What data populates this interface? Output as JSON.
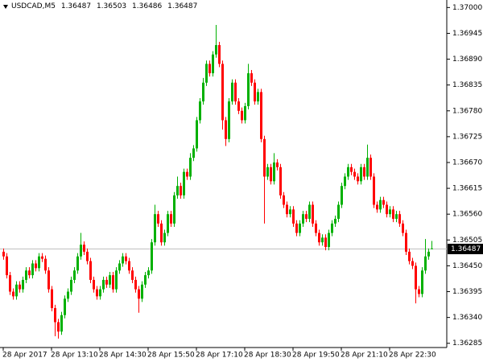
{
  "chart_data": {
    "type": "candlestick",
    "title": "USDCAD,M5",
    "categories": [
      "28 Apr 2017",
      null,
      null,
      null,
      null,
      null,
      null,
      null,
      null,
      null,
      null,
      null,
      null,
      null,
      null,
      "28 Apr 13:10",
      null,
      null,
      null,
      null,
      null,
      null,
      null,
      null,
      null,
      null,
      null,
      null,
      null,
      null,
      "28 Apr 14:30",
      null,
      null,
      null,
      null,
      null,
      null,
      null,
      null,
      null,
      null,
      null,
      null,
      null,
      null,
      "28 Apr 15:50",
      null,
      null,
      null,
      null,
      null,
      null,
      null,
      null,
      null,
      null,
      null,
      null,
      null,
      null,
      "28 Apr 17:10",
      null,
      null,
      null,
      null,
      null,
      null,
      null,
      null,
      null,
      null,
      null,
      null,
      null,
      null,
      "28 Apr 18:30",
      null,
      null,
      null,
      null,
      null,
      null,
      null,
      null,
      null,
      null,
      null,
      null,
      null,
      null,
      "28 Apr 19:50",
      null,
      null,
      null,
      null,
      null,
      null,
      null,
      null,
      null,
      null,
      null,
      null,
      null,
      null,
      "28 Apr 21:10",
      null,
      null,
      null,
      null,
      null,
      null,
      null,
      null,
      null,
      null,
      null,
      null,
      null,
      null,
      "28 Apr 22:30",
      null,
      null,
      null,
      null,
      null,
      null,
      null,
      null,
      null,
      null,
      null,
      null,
      null
    ],
    "open": [
      1.3648,
      1.3647,
      1.3643,
      1.36395,
      1.36385,
      1.3641,
      1.364,
      1.3642,
      1.3644,
      1.3643,
      1.36455,
      1.36445,
      1.3647,
      1.36465,
      1.3644,
      1.364,
      1.3636,
      1.3633,
      1.3631,
      1.36345,
      1.3638,
      1.36395,
      1.3642,
      1.3644,
      1.3647,
      1.36495,
      1.3648,
      1.3646,
      1.3642,
      1.364,
      1.36385,
      1.364,
      1.3642,
      1.3641,
      1.3643,
      1.364,
      1.3644,
      1.36455,
      1.3647,
      1.3646,
      1.3644,
      1.3642,
      1.364,
      1.3638,
      1.3641,
      1.3643,
      1.3644,
      1.365,
      1.3656,
      1.3654,
      1.365,
      1.3652,
      1.3656,
      1.3654,
      1.366,
      1.3662,
      1.366,
      1.3665,
      1.3664,
      1.3668,
      1.367,
      1.3676,
      1.368,
      1.3684,
      1.3688,
      1.3686,
      1.369,
      1.3692,
      1.3688,
      1.3676,
      1.3672,
      1.368,
      1.3684,
      1.368,
      1.3678,
      1.3676,
      1.3679,
      1.3686,
      1.3684,
      1.368,
      1.3682,
      1.3672,
      1.3664,
      1.3666,
      1.3663,
      1.3667,
      1.3666,
      1.366,
      1.3658,
      1.3656,
      1.3657,
      1.3654,
      1.3652,
      1.3654,
      1.3656,
      1.3655,
      1.3658,
      1.3654,
      1.3652,
      1.365,
      1.3651,
      1.3649,
      1.3652,
      1.3654,
      1.3655,
      1.3658,
      1.3662,
      1.3664,
      1.3666,
      1.3665,
      1.3664,
      1.3663,
      1.3666,
      1.3664,
      1.3668,
      1.3664,
      1.3658,
      1.3657,
      1.3659,
      1.3658,
      1.3656,
      1.3657,
      1.3655,
      1.3656,
      1.3654,
      1.3652,
      1.3648,
      1.3646,
      1.3645,
      1.364,
      1.3639,
      1.3644,
      1.3647,
      1.36487
    ],
    "high": [
      1.36487,
      1.36477,
      1.36437,
      1.36402,
      1.36417,
      1.36417,
      1.36427,
      1.36447,
      1.36447,
      1.36462,
      1.36462,
      1.36477,
      1.36477,
      1.36472,
      1.36447,
      1.36407,
      1.36367,
      1.36337,
      1.36352,
      1.36387,
      1.36402,
      1.36427,
      1.36447,
      1.36477,
      1.3652,
      1.36502,
      1.36487,
      1.36467,
      1.36427,
      1.36407,
      1.36407,
      1.36427,
      1.36427,
      1.36437,
      1.36437,
      1.36447,
      1.36462,
      1.36477,
      1.36477,
      1.36467,
      1.36447,
      1.36427,
      1.36407,
      1.36417,
      1.36437,
      1.36447,
      1.36507,
      1.3658,
      1.36567,
      1.36547,
      1.36527,
      1.36567,
      1.36567,
      1.36607,
      1.3664,
      1.36627,
      1.36657,
      1.36657,
      1.3669,
      1.36707,
      1.36767,
      1.36807,
      1.3685,
      1.36887,
      1.36887,
      1.36907,
      1.36963,
      1.36927,
      1.36887,
      1.36767,
      1.36807,
      1.36847,
      1.36847,
      1.36807,
      1.36787,
      1.36797,
      1.3688,
      1.36867,
      1.36847,
      1.36827,
      1.36827,
      1.36727,
      1.36667,
      1.36667,
      1.3669,
      1.36677,
      1.36667,
      1.36607,
      1.36587,
      1.36577,
      1.36577,
      1.36547,
      1.36547,
      1.36567,
      1.36567,
      1.36587,
      1.36587,
      1.36547,
      1.36527,
      1.36517,
      1.36517,
      1.36527,
      1.36547,
      1.36557,
      1.36587,
      1.36627,
      1.36647,
      1.36667,
      1.36667,
      1.36657,
      1.36647,
      1.36667,
      1.36667,
      1.36708,
      1.36687,
      1.36647,
      1.36587,
      1.36597,
      1.36597,
      1.36587,
      1.36577,
      1.36577,
      1.36567,
      1.36567,
      1.36547,
      1.36527,
      1.36487,
      1.36467,
      1.36457,
      1.36407,
      1.36447,
      1.36507,
      1.36487,
      1.36503
    ],
    "low": [
      1.36463,
      1.36423,
      1.36388,
      1.36378,
      1.36378,
      1.36393,
      1.36393,
      1.36413,
      1.36423,
      1.36423,
      1.36438,
      1.36438,
      1.36458,
      1.36433,
      1.36393,
      1.36353,
      1.363,
      1.36295,
      1.36303,
      1.36338,
      1.36373,
      1.36388,
      1.36413,
      1.36433,
      1.36463,
      1.36473,
      1.36453,
      1.36413,
      1.36393,
      1.36378,
      1.36378,
      1.36393,
      1.36403,
      1.36403,
      1.36393,
      1.36393,
      1.36433,
      1.36448,
      1.36453,
      1.36433,
      1.36413,
      1.36393,
      1.3635,
      1.36373,
      1.36403,
      1.36423,
      1.36433,
      1.36493,
      1.36533,
      1.36493,
      1.36493,
      1.36513,
      1.36533,
      1.36533,
      1.36593,
      1.36593,
      1.36593,
      1.36633,
      1.36633,
      1.36673,
      1.36693,
      1.36753,
      1.36793,
      1.36833,
      1.36853,
      1.36853,
      1.36893,
      1.36873,
      1.3674,
      1.36705,
      1.36713,
      1.36793,
      1.36793,
      1.36773,
      1.36753,
      1.36753,
      1.36783,
      1.36833,
      1.36793,
      1.36793,
      1.36713,
      1.3654,
      1.36633,
      1.36623,
      1.36623,
      1.36653,
      1.36593,
      1.36573,
      1.36553,
      1.36553,
      1.36533,
      1.36513,
      1.36513,
      1.36533,
      1.36543,
      1.36543,
      1.36533,
      1.36513,
      1.36493,
      1.36493,
      1.36483,
      1.36483,
      1.36513,
      1.36533,
      1.36543,
      1.36573,
      1.36613,
      1.36633,
      1.36643,
      1.36633,
      1.36623,
      1.36623,
      1.36633,
      1.36633,
      1.36633,
      1.36573,
      1.36563,
      1.36563,
      1.36573,
      1.36553,
      1.36553,
      1.36543,
      1.36543,
      1.36533,
      1.36513,
      1.36473,
      1.36453,
      1.36443,
      1.3637,
      1.36383,
      1.36383,
      1.36433,
      1.36463,
      1.36486
    ],
    "close": [
      1.3647,
      1.3643,
      1.36395,
      1.36385,
      1.3641,
      1.364,
      1.3642,
      1.3644,
      1.3643,
      1.36455,
      1.36445,
      1.3647,
      1.36465,
      1.3644,
      1.364,
      1.3636,
      1.3633,
      1.3631,
      1.36345,
      1.3638,
      1.36395,
      1.3642,
      1.3644,
      1.3647,
      1.36495,
      1.3648,
      1.3646,
      1.3642,
      1.364,
      1.36385,
      1.364,
      1.3642,
      1.3641,
      1.3643,
      1.364,
      1.3644,
      1.36455,
      1.3647,
      1.3646,
      1.3644,
      1.3642,
      1.364,
      1.3638,
      1.3641,
      1.3643,
      1.3644,
      1.365,
      1.3656,
      1.3654,
      1.365,
      1.3652,
      1.3656,
      1.3654,
      1.366,
      1.3662,
      1.366,
      1.3665,
      1.3664,
      1.3668,
      1.367,
      1.3676,
      1.368,
      1.3684,
      1.3688,
      1.3686,
      1.369,
      1.3692,
      1.3688,
      1.3676,
      1.3672,
      1.368,
      1.3684,
      1.368,
      1.3678,
      1.3676,
      1.3679,
      1.3686,
      1.3684,
      1.368,
      1.3682,
      1.3672,
      1.3664,
      1.3666,
      1.3663,
      1.3667,
      1.3666,
      1.366,
      1.3658,
      1.3656,
      1.3657,
      1.3654,
      1.3652,
      1.3654,
      1.3656,
      1.3655,
      1.3658,
      1.3654,
      1.3652,
      1.365,
      1.3651,
      1.3649,
      1.3652,
      1.3654,
      1.3655,
      1.3658,
      1.3662,
      1.3664,
      1.3666,
      1.3665,
      1.3664,
      1.3663,
      1.3666,
      1.3664,
      1.3668,
      1.3664,
      1.3658,
      1.3657,
      1.3659,
      1.3658,
      1.3656,
      1.3657,
      1.3655,
      1.3656,
      1.3654,
      1.3652,
      1.3648,
      1.3646,
      1.3645,
      1.364,
      1.3639,
      1.3644,
      1.3647,
      1.3648,
      1.36487
    ],
    "up_color": "#00b000",
    "down_color": "#ff0000",
    "ylim": [
      1.36276,
      1.37016
    ],
    "yticks": [
      {
        "value": 1.37,
        "label": "1.37000"
      },
      1.36945,
      {
        "value": 1.3689,
        "label": "1.36890"
      },
      1.36835,
      {
        "value": 1.3678,
        "label": "1.36780"
      },
      1.36725,
      {
        "value": 1.3667,
        "label": "1.36670"
      },
      1.36615,
      {
        "value": 1.3656,
        "label": "1.36560"
      },
      1.36505,
      {
        "value": 1.3645,
        "label": "1.36450"
      },
      1.36395,
      {
        "value": 1.3634,
        "label": "1.36340"
      },
      1.36285
    ]
  }
}
